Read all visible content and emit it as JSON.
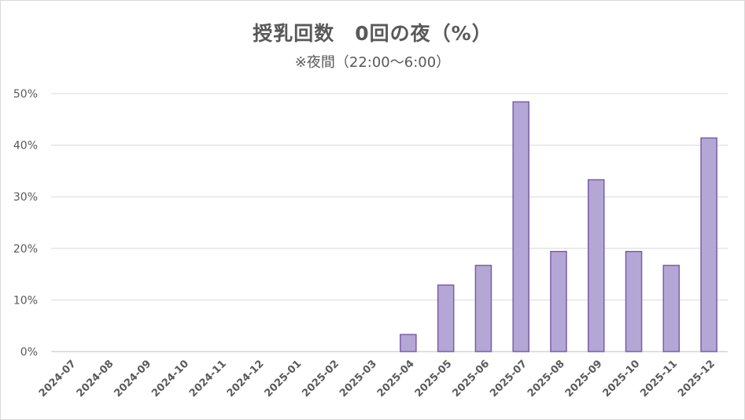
{
  "chart_data": {
    "type": "bar",
    "title": "授乳回数　0回の夜（%）",
    "subtitle": "※夜間（22:00～6:00）",
    "xlabel": "",
    "ylabel": "",
    "ylim": [
      0,
      50
    ],
    "yticks": [
      "0%",
      "10%",
      "20%",
      "30%",
      "40%",
      "50%"
    ],
    "ytick_values": [
      0,
      10,
      20,
      30,
      40,
      50
    ],
    "categories": [
      "2024-07",
      "2024-08",
      "2024-09",
      "2024-10",
      "2024-11",
      "2024-12",
      "2025-01",
      "2025-02",
      "2025-03",
      "2025-04",
      "2025-05",
      "2025-06",
      "2025-07",
      "2025-08",
      "2025-09",
      "2025-10",
      "2025-11",
      "2025-12"
    ],
    "values": [
      0,
      0,
      0,
      0,
      0,
      0,
      0,
      0,
      0,
      3.3,
      12.9,
      16.7,
      48.4,
      19.4,
      33.3,
      19.4,
      16.7,
      41.4
    ],
    "grid": true,
    "legend": "none",
    "bar_fill": "#b4a7d6",
    "bar_stroke": "#7a5ea8"
  }
}
